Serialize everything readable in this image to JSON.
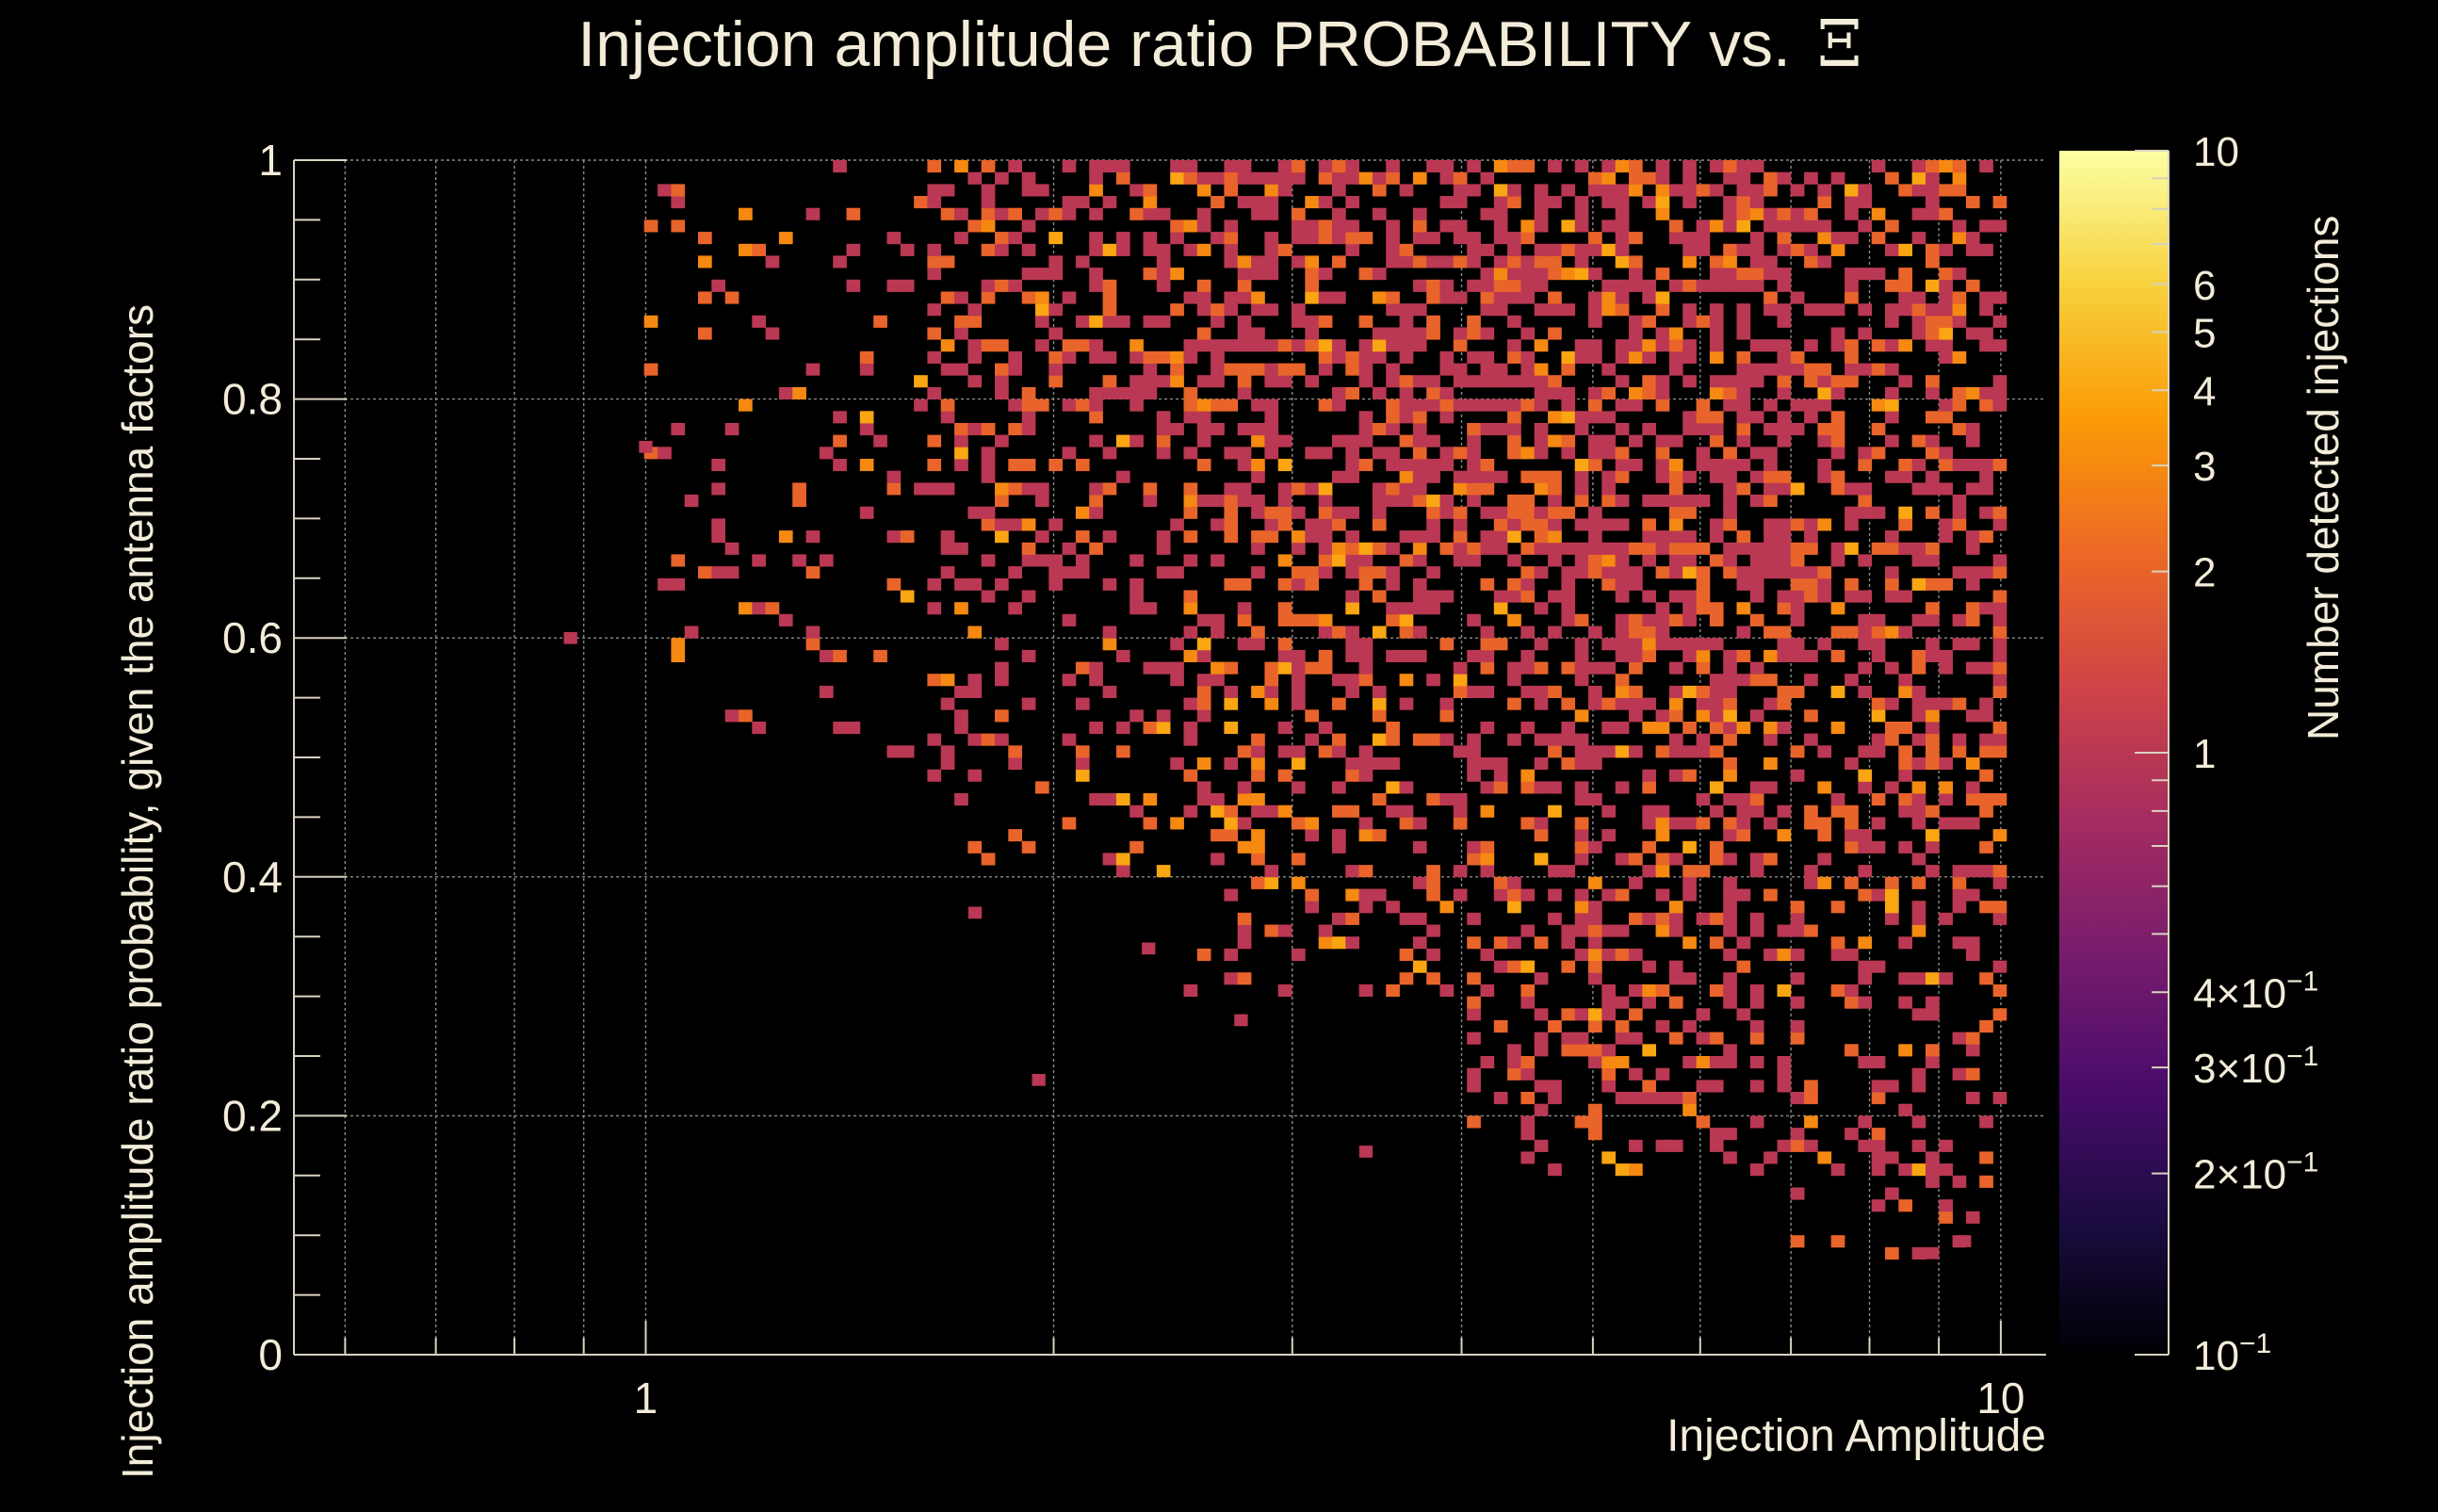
{
  "chart_data": {
    "type": "heatmap",
    "title": "Injection amplitude ratio PROBABILITY vs.",
    "title_symbol": "Ξ",
    "xlabel": "Injection Amplitude",
    "ylabel": "Injection amplitude ratio probability, given the antenna factors",
    "zlabel": "Number detected injections",
    "x_scale": "log",
    "xlim": [
      0.55,
      10.8
    ],
    "ylim": [
      0,
      1
    ],
    "z_scale": "log",
    "zlim": [
      0.1,
      10
    ],
    "grid": true,
    "x_ticks": [
      {
        "value": 1,
        "label": "1"
      },
      {
        "value": 10,
        "label": "10"
      }
    ],
    "y_ticks": [
      {
        "value": 0,
        "label": "0"
      },
      {
        "value": 0.2,
        "label": "0.2"
      },
      {
        "value": 0.4,
        "label": "0.4"
      },
      {
        "value": 0.6,
        "label": "0.6"
      },
      {
        "value": 0.8,
        "label": "0.8"
      },
      {
        "value": 1,
        "label": "1"
      }
    ],
    "z_ticks": [
      {
        "value": 10,
        "base": "10",
        "exp": ""
      },
      {
        "value": 6,
        "base": "6",
        "exp": ""
      },
      {
        "value": 5,
        "base": "5",
        "exp": ""
      },
      {
        "value": 4,
        "base": "4",
        "exp": ""
      },
      {
        "value": 3,
        "base": "3",
        "exp": ""
      },
      {
        "value": 2,
        "base": "2",
        "exp": ""
      },
      {
        "value": 1,
        "base": "1",
        "exp": ""
      },
      {
        "value": 0.4,
        "base": "4×10",
        "exp": "−1"
      },
      {
        "value": 0.3,
        "base": "3×10",
        "exp": "−1"
      },
      {
        "value": 0.2,
        "base": "2×10",
        "exp": "−1"
      },
      {
        "value": 0.1,
        "base": "10",
        "exp": "−1"
      }
    ],
    "colormap": [
      "#000004",
      "#1b0c41",
      "#4a0c6b",
      "#781c6d",
      "#a52c60",
      "#cf4446",
      "#ed6925",
      "#fb9b06",
      "#f7d13d",
      "#fcffa4"
    ],
    "bins": {
      "x_edges_log10_range": [
        -0.26,
        1.034
      ],
      "y_edges_range": [
        0,
        1
      ],
      "nx": 130,
      "ny": 100
    },
    "regions": [
      {
        "x_range": [
          1.0,
          1.6
        ],
        "y_range": [
          0.5,
          1.0
        ],
        "density": 0.12
      },
      {
        "x_range": [
          1.6,
          2.5
        ],
        "y_range": [
          0.4,
          1.0
        ],
        "density": 0.35
      },
      {
        "x_range": [
          2.5,
          4.0
        ],
        "y_range": [
          0.3,
          1.0
        ],
        "density": 0.5
      },
      {
        "x_range": [
          4.0,
          7.0
        ],
        "y_range": [
          0.15,
          1.0
        ],
        "density": 0.55
      },
      {
        "x_range": [
          7.0,
          10.0
        ],
        "y_range": [
          0.08,
          1.0
        ],
        "density": 0.45
      }
    ],
    "isolated_points": [
      {
        "x": 0.88,
        "y": 0.6,
        "value": 1
      },
      {
        "x": 1.0,
        "y": 0.76,
        "value": 1
      },
      {
        "x": 1.95,
        "y": 0.23,
        "value": 1
      },
      {
        "x": 1.75,
        "y": 0.37,
        "value": 1
      },
      {
        "x": 2.35,
        "y": 0.34,
        "value": 1
      },
      {
        "x": 2.75,
        "y": 0.28,
        "value": 1
      },
      {
        "x": 3.4,
        "y": 0.17,
        "value": 1
      },
      {
        "x": 8.9,
        "y": 0.085,
        "value": 1
      },
      {
        "x": 9.4,
        "y": 0.095,
        "value": 1
      }
    ]
  }
}
